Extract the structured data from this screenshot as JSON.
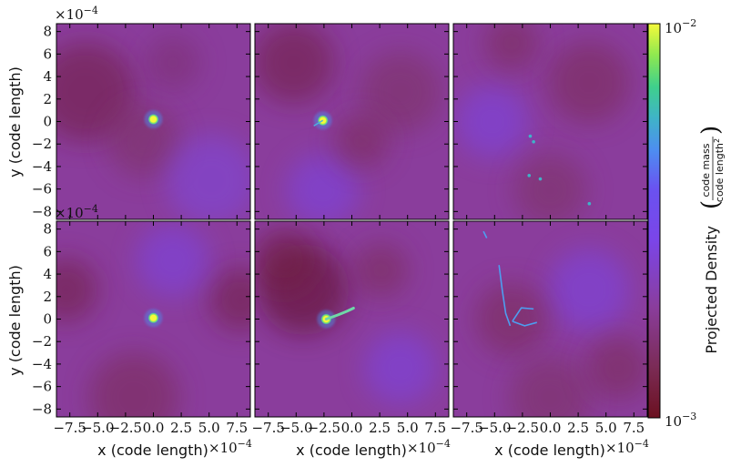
{
  "chart_data": {
    "type": "heatmap",
    "layout": {
      "rows": 2,
      "cols": 3
    },
    "x_axis_label": "x  (code length)",
    "y_axis_label": "y  (code length)",
    "axis_multiplier": "×10",
    "axis_multiplier_exp": "−4",
    "x_ticks": [
      -7.5,
      -5.0,
      -2.5,
      0.0,
      2.5,
      5.0,
      7.5
    ],
    "x_tick_labels": [
      "−7.5",
      "−5.0",
      "−2.5",
      "0.0",
      "2.5",
      "5.0",
      "7.5"
    ],
    "y_ticks": [
      8,
      6,
      4,
      2,
      0,
      -2,
      -4,
      -6,
      -8
    ],
    "y_tick_labels": [
      "8",
      "6",
      "4",
      "2",
      "0",
      "−2",
      "−4",
      "−6",
      "−8"
    ],
    "x_range": [
      -8.7,
      8.7
    ],
    "y_range": [
      -8.7,
      8.7
    ],
    "colorbar": {
      "label": "Projected Density",
      "unit_numerator": "code mass",
      "unit_denominator": "code length",
      "unit_denominator_exp": "2",
      "max_base": "10",
      "max_exp": "−2",
      "min_base": "10",
      "min_exp": "−3",
      "scale": "log",
      "range": [
        0.001,
        0.01
      ],
      "colors": [
        "#6b1020",
        "#7a2a52",
        "#8a3d9c",
        "#7b45e8",
        "#6a52f0",
        "#4d8ef0",
        "#3fb3c8",
        "#3fd08c",
        "#8ee850",
        "#f5fa3a"
      ]
    },
    "panels": [
      {
        "row": 0,
        "col": 0,
        "features": [
          {
            "kind": "blob",
            "x": 0.0,
            "y": 0.2
          }
        ]
      },
      {
        "row": 0,
        "col": 1,
        "features": [
          {
            "kind": "blob",
            "x": -2.6,
            "y": 0.1
          }
        ]
      },
      {
        "row": 0,
        "col": 2,
        "features": [
          {
            "kind": "specks",
            "points": [
              [
                -1.8,
                -1.3
              ],
              [
                -1.5,
                -1.8
              ],
              [
                -0.9,
                -5.1
              ],
              [
                -1.9,
                -4.8
              ],
              [
                3.5,
                -7.3
              ]
            ]
          }
        ]
      },
      {
        "row": 1,
        "col": 0,
        "features": [
          {
            "kind": "blob",
            "x": 0.0,
            "y": 0.1
          }
        ]
      },
      {
        "row": 1,
        "col": 1,
        "features": [
          {
            "kind": "blob",
            "x": -2.3,
            "y": 0.0
          }
        ]
      },
      {
        "row": 1,
        "col": 2,
        "features": [
          {
            "kind": "filaments"
          }
        ]
      }
    ]
  }
}
